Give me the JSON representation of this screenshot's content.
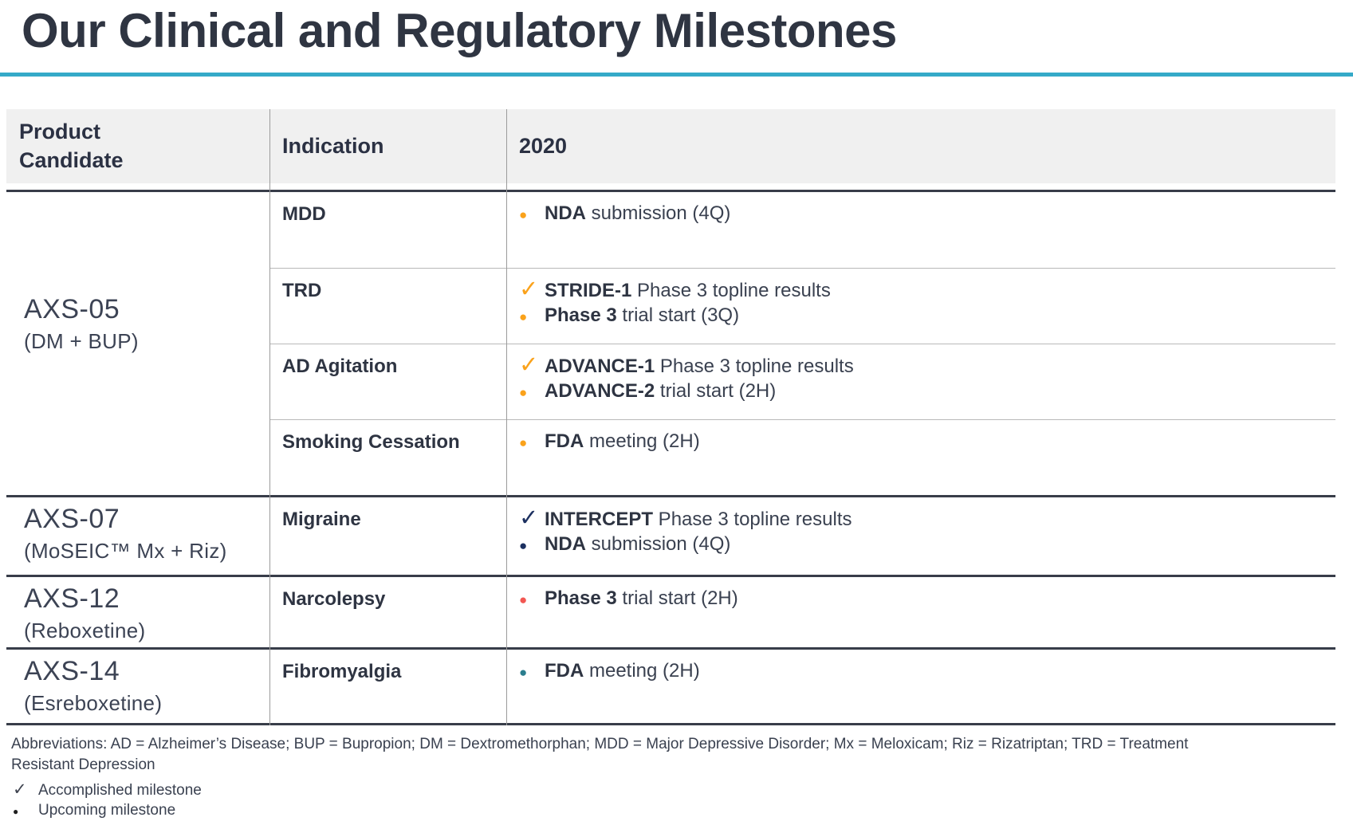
{
  "title": "Our Clinical and Regulatory Milestones",
  "icons": {
    "check": "✓",
    "bullet": "●"
  },
  "colors": {
    "accent_teal_rule": "#35AAC8",
    "header_background": "#F0F0F0",
    "orange_milestone": "#FAA21B",
    "navy_milestone": "#1C3060",
    "red_milestone": "#F25752",
    "teal_milestone": "#2B7E8E"
  },
  "table": {
    "headers": [
      "Product Candidate",
      "Indication",
      "2020"
    ]
  },
  "groups": [
    {
      "product": "AXS-05",
      "product_sub": "(DM + BUP)",
      "rows": [
        {
          "indication": "MDD",
          "milestones": [
            {
              "marker": "bullet",
              "color": "#FAA21B",
              "bold": "NDA",
              "rest": " submission (4Q)"
            }
          ]
        },
        {
          "indication": "TRD",
          "milestones": [
            {
              "marker": "check",
              "color": "#FAA21B",
              "bold": "STRIDE-1",
              "rest": " Phase 3 topline results"
            },
            {
              "marker": "bullet",
              "color": "#FAA21B",
              "bold": "Phase 3",
              "rest": " trial start (3Q)"
            }
          ]
        },
        {
          "indication": "AD Agitation",
          "milestones": [
            {
              "marker": "check",
              "color": "#FAA21B",
              "bold": "ADVANCE-1",
              "rest": " Phase 3 topline results"
            },
            {
              "marker": "bullet",
              "color": "#FAA21B",
              "bold": "ADVANCE-2",
              "rest": " trial start (2H)"
            }
          ]
        },
        {
          "indication": "Smoking Cessation",
          "milestones": [
            {
              "marker": "bullet",
              "color": "#FAA21B",
              "bold": "FDA",
              "rest": " meeting (2H)"
            }
          ]
        }
      ]
    },
    {
      "product": "AXS-07",
      "product_sub": "(MoSEIC™ Mx + Riz)",
      "rows": [
        {
          "indication": "Migraine",
          "milestones": [
            {
              "marker": "check",
              "color": "#1C3060",
              "bold": "INTERCEPT",
              "rest": " Phase 3 topline results"
            },
            {
              "marker": "bullet",
              "color": "#1C3060",
              "bold": "NDA",
              "rest": " submission (4Q)"
            }
          ]
        }
      ]
    },
    {
      "product": "AXS-12",
      "product_sub": "(Reboxetine)",
      "rows": [
        {
          "indication": "Narcolepsy",
          "milestones": [
            {
              "marker": "bullet",
              "color": "#F25752",
              "bold": "Phase 3",
              "rest": " trial start (2H)"
            }
          ]
        }
      ]
    },
    {
      "product": "AXS-14",
      "product_sub": "(Esreboxetine)",
      "rows": [
        {
          "indication": "Fibromyalgia",
          "milestones": [
            {
              "marker": "bullet",
              "color": "#2B7E8E",
              "bold": "FDA",
              "rest": " meeting (2H)"
            }
          ]
        }
      ]
    }
  ],
  "footnotes": {
    "abbreviations": "Abbreviations: AD = Alzheimer’s Disease; BUP = Bupropion; DM = Dextromethorphan; MDD = Major Depressive Disorder; Mx = Meloxicam; Riz = Rizatriptan; TRD = Treatment Resistant Depression",
    "legend": [
      {
        "marker": "check",
        "label": "Accomplished milestone"
      },
      {
        "marker": "bullet",
        "label": "Upcoming milestone"
      }
    ]
  }
}
